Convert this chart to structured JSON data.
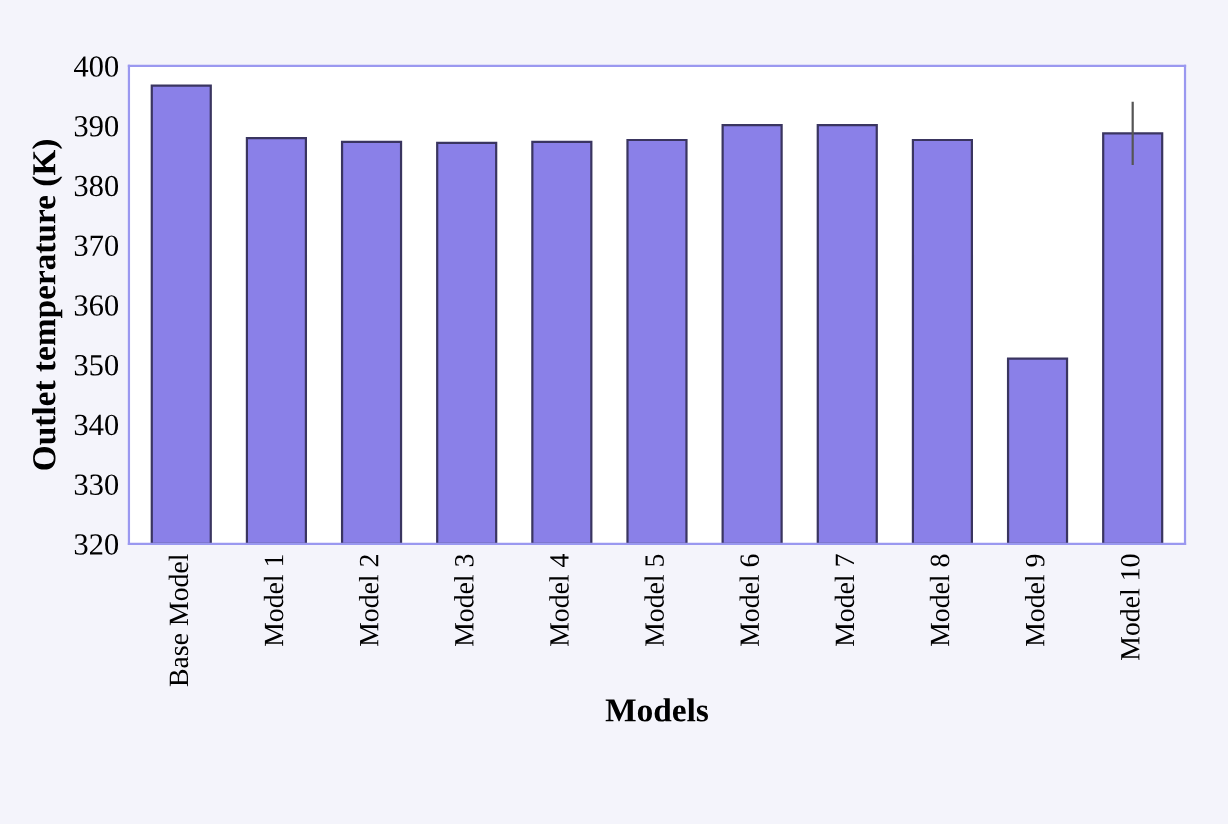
{
  "chart_data": {
    "type": "bar",
    "xlabel": "Models",
    "ylabel": "Outlet temperature (K)",
    "categories": [
      "Base Model",
      "Model 1",
      "Model 2",
      "Model 3",
      "Model 4",
      "Model 5",
      "Model 6",
      "Model 7",
      "Model 8",
      "Model 9",
      "Model 10"
    ],
    "values": [
      396.7,
      387.9,
      387.3,
      387.1,
      387.3,
      387.6,
      390.1,
      390.1,
      387.6,
      351,
      388.7
    ],
    "errors": [
      null,
      null,
      null,
      null,
      null,
      null,
      null,
      null,
      null,
      null,
      5.3
    ],
    "color": "#8a80e8",
    "ylim": [
      320,
      400
    ],
    "yticks": [
      320,
      330,
      340,
      350,
      360,
      370,
      380,
      390,
      400
    ],
    "grid": false,
    "legend": false
  }
}
